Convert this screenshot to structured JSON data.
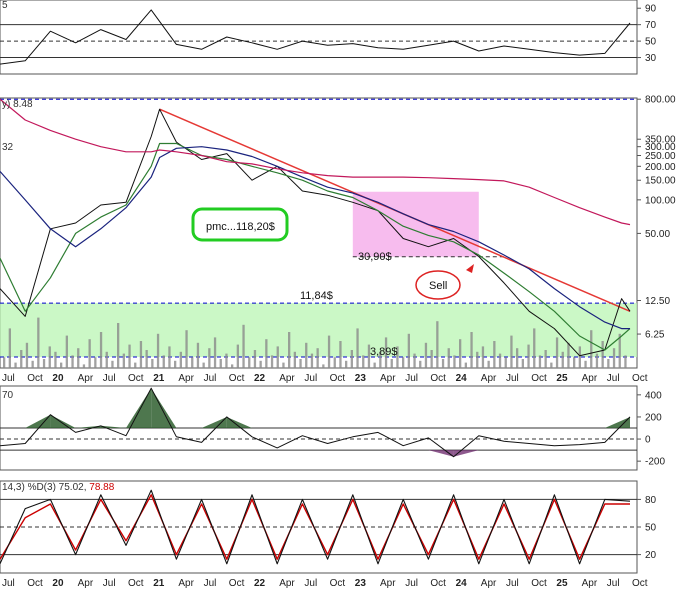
{
  "colors": {
    "frame": "#555555",
    "ref_line": "#333333",
    "blue_dash": "#0000cc",
    "price": "#111111",
    "ma_short": "#2e7d32",
    "ma_mid": "#1a237e",
    "ma_long": "#c2185b",
    "trend": "#e53935",
    "band_green": "#b9f5b3",
    "band_pink": "#f4a6e8",
    "fill_dark": "#2f5f2f",
    "fill_purple": "#7a3c7a",
    "volume": "#8a8a8a",
    "stoch_k": "#111111",
    "stoch_d": "#cc0000",
    "box_green": "#22cc22",
    "circle_red": "#dd2222"
  },
  "header": {
    "rsi_fragment": "5",
    "price_fragment": "y) 8.48",
    "price_left_fragment": "32",
    "mid_fragment": "70",
    "stoch_label": "14,3) %D(3) 75.02,",
    "stoch_value": "78.88"
  },
  "annotations": {
    "pmc": "pmc...118,20$",
    "level_3090": "30,90$",
    "sell": "Sell",
    "level_1184": "11,84$",
    "level_389": "3,89$"
  },
  "chart_data": [
    {
      "type": "line",
      "panel": "RSI",
      "y_ticks": [
        "90",
        "70",
        "50",
        "30"
      ],
      "ylim": [
        10,
        100
      ],
      "reference_lines": [
        70,
        50,
        30
      ],
      "x": [
        "2019-07",
        "2019-10",
        "2020-01",
        "2020-04",
        "2020-07",
        "2020-10",
        "2021-01",
        "2021-04",
        "2021-07",
        "2021-10",
        "2022-01",
        "2022-04",
        "2022-07",
        "2022-10",
        "2023-01",
        "2023-04",
        "2023-07",
        "2023-10",
        "2024-01",
        "2024-04",
        "2024-07",
        "2024-10",
        "2025-01",
        "2025-04",
        "2025-07",
        "2025-10"
      ],
      "values": [
        22,
        26,
        62,
        48,
        64,
        52,
        88,
        46,
        40,
        55,
        48,
        40,
        50,
        45,
        47,
        42,
        40,
        45,
        50,
        38,
        44,
        40,
        36,
        33,
        35,
        72
      ]
    },
    {
      "type": "line",
      "panel": "Price (log scale)",
      "log_scale": true,
      "ylim": [
        3.1,
        820
      ],
      "y_ticks": [
        "800.00",
        "350.00",
        "300.00",
        "250.00",
        "200.00",
        "150.00",
        "100.00",
        "50.00",
        "12.50",
        "6.25"
      ],
      "x": [
        "2019-07",
        "2019-10",
        "2020-01",
        "2020-04",
        "2020-07",
        "2020-10",
        "2021-01",
        "2021-02",
        "2021-04",
        "2021-07",
        "2021-10",
        "2022-01",
        "2022-04",
        "2022-07",
        "2022-10",
        "2023-01",
        "2023-04",
        "2023-07",
        "2023-10",
        "2024-01",
        "2024-04",
        "2024-07",
        "2024-10",
        "2025-01",
        "2025-04",
        "2025-07",
        "2025-09",
        "2025-10"
      ],
      "series": [
        {
          "role": "price",
          "values": [
            16,
            9,
            55,
            62,
            90,
            95,
            370,
            650,
            330,
            230,
            260,
            150,
            200,
            120,
            110,
            95,
            80,
            45,
            38,
            45,
            31,
            18,
            10,
            7,
            4,
            4.5,
            13,
            10
          ]
        },
        {
          "role": "ma_short",
          "values": [
            30,
            10,
            20,
            50,
            70,
            90,
            200,
            320,
            320,
            250,
            230,
            200,
            175,
            150,
            120,
            105,
            80,
            58,
            48,
            42,
            32,
            22,
            15,
            10,
            6,
            4.5,
            6,
            7
          ]
        },
        {
          "role": "ma_mid",
          "values": [
            180,
            100,
            55,
            38,
            55,
            85,
            160,
            240,
            290,
            300,
            280,
            245,
            200,
            160,
            130,
            115,
            95,
            75,
            60,
            52,
            42,
            32,
            24,
            16,
            11,
            8,
            7,
            7
          ]
        },
        {
          "role": "ma_long",
          "values": [
            800,
            520,
            420,
            350,
            300,
            270,
            270,
            280,
            270,
            250,
            220,
            210,
            190,
            175,
            165,
            160,
            160,
            160,
            158,
            155,
            152,
            148,
            130,
            105,
            85,
            70,
            62,
            60
          ]
        }
      ],
      "trendline": {
        "x": [
          "2021-02",
          "2025-10"
        ],
        "values": [
          650,
          10
        ]
      },
      "horizontal_levels": [
        800,
        11.84,
        3.89,
        30.9
      ]
    },
    {
      "type": "area",
      "panel": "Oscillator",
      "y_ticks": [
        "400",
        "200",
        "0",
        "-200"
      ],
      "ylim": [
        -280,
        480
      ],
      "x": [
        "2019-07",
        "2019-10",
        "2020-01",
        "2020-04",
        "2020-07",
        "2020-10",
        "2021-01",
        "2021-04",
        "2021-07",
        "2021-10",
        "2022-01",
        "2022-04",
        "2022-07",
        "2022-10",
        "2023-01",
        "2023-04",
        "2023-07",
        "2023-10",
        "2024-01",
        "2024-04",
        "2024-07",
        "2024-10",
        "2025-01",
        "2025-04",
        "2025-07",
        "2025-10"
      ],
      "values": [
        -60,
        -40,
        220,
        60,
        120,
        30,
        460,
        20,
        -30,
        200,
        20,
        -80,
        30,
        -40,
        20,
        60,
        -60,
        10,
        -160,
        30,
        -20,
        -40,
        -60,
        -50,
        -30,
        200
      ]
    },
    {
      "type": "line",
      "panel": "Stochastic",
      "y_ticks": [
        "80",
        "50",
        "20"
      ],
      "ylim": [
        0,
        100
      ],
      "reference_lines": [
        80,
        50,
        20
      ],
      "x": [
        "2019-07",
        "2019-10",
        "2020-01",
        "2020-04",
        "2020-07",
        "2020-10",
        "2021-01",
        "2021-04",
        "2021-07",
        "2021-10",
        "2022-01",
        "2022-04",
        "2022-07",
        "2022-10",
        "2023-01",
        "2023-04",
        "2023-07",
        "2023-10",
        "2024-01",
        "2024-04",
        "2024-07",
        "2024-10",
        "2025-01",
        "2025-04",
        "2025-07",
        "2025-10"
      ],
      "series": [
        {
          "name": "%K",
          "values": [
            10,
            70,
            80,
            20,
            85,
            30,
            90,
            15,
            80,
            10,
            85,
            10,
            80,
            15,
            85,
            10,
            80,
            15,
            85,
            10,
            80,
            10,
            85,
            10,
            80,
            78
          ]
        },
        {
          "name": "%D",
          "values": [
            15,
            60,
            75,
            25,
            80,
            35,
            85,
            20,
            75,
            15,
            80,
            15,
            75,
            20,
            80,
            15,
            75,
            20,
            80,
            15,
            75,
            15,
            80,
            15,
            75,
            75
          ]
        }
      ]
    }
  ],
  "x_axis_labels": [
    "Jul",
    "Oct",
    "20",
    "Apr",
    "Jul",
    "Oct",
    "21",
    "Apr",
    "Jul",
    "Oct",
    "22",
    "Apr",
    "Jul",
    "Oct",
    "23",
    "Apr",
    "Jul",
    "Oct",
    "24",
    "Apr",
    "Jul",
    "Oct",
    "25",
    "Apr",
    "Jul",
    "Oct"
  ]
}
